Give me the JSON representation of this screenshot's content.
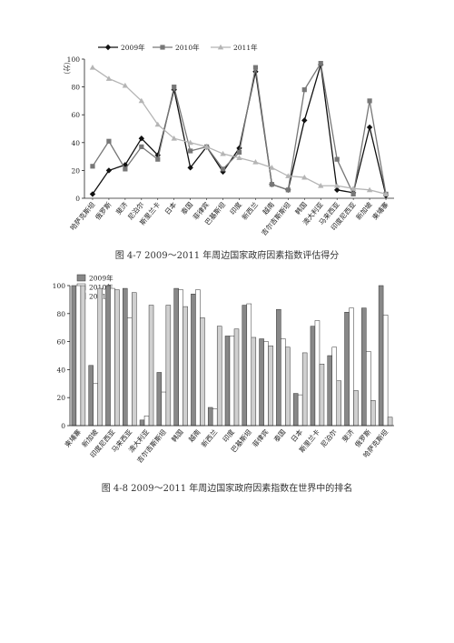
{
  "chart_data": [
    {
      "type": "line",
      "title": "",
      "ylabel": "（分）",
      "ylim": [
        0,
        100
      ],
      "yticks": [
        0,
        20,
        40,
        60,
        80,
        100
      ],
      "categories": [
        "哈萨克斯坦",
        "俄罗斯",
        "斐济",
        "尼泊尔",
        "斯里兰卡",
        "日本",
        "泰国",
        "菲律宾",
        "巴基斯坦",
        "印度",
        "新西兰",
        "越南",
        "吉尔吉斯斯坦",
        "韩国",
        "澳大利亚",
        "马来西亚",
        "印度尼西亚",
        "新加坡",
        "柬埔寨"
      ],
      "series": [
        {
          "name": "2009年",
          "color": "#111111",
          "marker": "diamond",
          "values": [
            3,
            20,
            24,
            43,
            31,
            78,
            22,
            37,
            19,
            36,
            91,
            10,
            6,
            56,
            96,
            6,
            4,
            51,
            2
          ]
        },
        {
          "name": "2010年",
          "color": "#777777",
          "marker": "square",
          "values": [
            23,
            41,
            21,
            37,
            28,
            80,
            34,
            37,
            21,
            33,
            94,
            10,
            6,
            78,
            97,
            28,
            3,
            70,
            3
          ]
        },
        {
          "name": "2011年",
          "color": "#b5b5b5",
          "marker": "triangle",
          "values": [
            94,
            86,
            81,
            70,
            53,
            43,
            40,
            37,
            32,
            29,
            26,
            22,
            16,
            15,
            9,
            9,
            7,
            6,
            3
          ]
        }
      ],
      "legend": "top"
    },
    {
      "type": "bar",
      "title": "",
      "ylim": [
        0,
        100
      ],
      "yticks": [
        0,
        20,
        40,
        60,
        80,
        100
      ],
      "categories": [
        "柬埔寨",
        "新加坡",
        "印度尼西亚",
        "马来西亚",
        "澳大利亚",
        "吉尔吉斯斯坦",
        "韩国",
        "越南",
        "新西兰",
        "印度",
        "巴基斯坦",
        "菲律宾",
        "泰国",
        "日本",
        "斯里兰卡",
        "尼泊尔",
        "斐济",
        "俄罗斯",
        "哈萨克斯坦"
      ],
      "series": [
        {
          "name": "2009年",
          "color": "#888888",
          "values": [
            100,
            43,
            100,
            98,
            4,
            38,
            98,
            94,
            13,
            64,
            86,
            62,
            83,
            23,
            71,
            50,
            81,
            84,
            100
          ]
        },
        {
          "name": "2010年",
          "color": "#ffffff",
          "values": [
            100,
            30,
            98,
            77,
            7,
            24,
            97,
            97,
            12,
            64,
            87,
            60,
            62,
            22,
            75,
            56,
            84,
            53,
            79
          ]
        },
        {
          "name": "2011年",
          "color": "#d0d0d0",
          "values": [
            100,
            98,
            97,
            95,
            86,
            86,
            85,
            77,
            71,
            69,
            63,
            57,
            56,
            52,
            44,
            32,
            25,
            18,
            6
          ]
        }
      ],
      "legend": "top-left"
    }
  ],
  "captions": {
    "fig1": "图 4-7  2009～2011 年周边国家政府因素指数评估得分",
    "fig2": "图 4-8  2009～2011 年周边国家政府因素指数在世界中的排名"
  }
}
